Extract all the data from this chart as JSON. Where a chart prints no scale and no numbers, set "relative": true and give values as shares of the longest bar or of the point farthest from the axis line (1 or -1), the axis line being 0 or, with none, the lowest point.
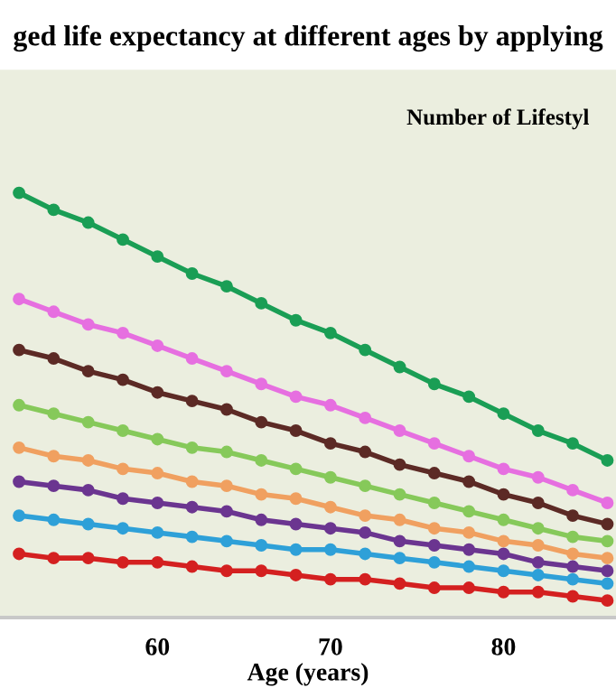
{
  "chart_data": {
    "type": "line",
    "title": "ged life expectancy at different ages by applying",
    "xlabel": "Age (years)",
    "annotations": [
      "Number of Lifestyl"
    ],
    "relative": true,
    "marker": "circle",
    "line_style": "solid",
    "grid": false,
    "legend": false,
    "x": [
      52,
      54,
      56,
      58,
      60,
      62,
      64,
      66,
      68,
      70,
      72,
      74,
      76,
      78,
      80,
      82,
      84,
      86
    ],
    "xlim": [
      50.9,
      86.5
    ],
    "xticks": [
      60,
      70,
      80
    ],
    "series": [
      {
        "color": "#1a9e55",
        "values": [
          1.0,
          0.96,
          0.93,
          0.89,
          0.85,
          0.81,
          0.78,
          0.74,
          0.7,
          0.67,
          0.63,
          0.59,
          0.55,
          0.52,
          0.48,
          0.44,
          0.41,
          0.37
        ]
      },
      {
        "color": "#e66fe0",
        "values": [
          0.75,
          0.72,
          0.69,
          0.67,
          0.64,
          0.61,
          0.58,
          0.55,
          0.52,
          0.5,
          0.47,
          0.44,
          0.41,
          0.38,
          0.35,
          0.33,
          0.3,
          0.27
        ]
      },
      {
        "color": "#5c2a25",
        "values": [
          0.63,
          0.61,
          0.58,
          0.56,
          0.53,
          0.51,
          0.49,
          0.46,
          0.44,
          0.41,
          0.39,
          0.36,
          0.34,
          0.32,
          0.29,
          0.27,
          0.24,
          0.22
        ]
      },
      {
        "color": "#86c95a",
        "values": [
          0.5,
          0.48,
          0.46,
          0.44,
          0.42,
          0.4,
          0.39,
          0.37,
          0.35,
          0.33,
          0.31,
          0.29,
          0.27,
          0.25,
          0.23,
          0.21,
          0.19,
          0.18
        ]
      },
      {
        "color": "#f0a060",
        "values": [
          0.4,
          0.38,
          0.37,
          0.35,
          0.34,
          0.32,
          0.31,
          0.29,
          0.28,
          0.26,
          0.24,
          0.23,
          0.21,
          0.2,
          0.18,
          0.17,
          0.15,
          0.14
        ]
      },
      {
        "color": "#6b3590",
        "values": [
          0.32,
          0.31,
          0.3,
          0.28,
          0.27,
          0.26,
          0.25,
          0.23,
          0.22,
          0.21,
          0.2,
          0.18,
          0.17,
          0.16,
          0.15,
          0.13,
          0.12,
          0.11
        ]
      },
      {
        "color": "#2ea0d8",
        "values": [
          0.24,
          0.23,
          0.22,
          0.21,
          0.2,
          0.19,
          0.18,
          0.17,
          0.16,
          0.16,
          0.15,
          0.14,
          0.13,
          0.12,
          0.11,
          0.1,
          0.09,
          0.08
        ]
      },
      {
        "color": "#d42020",
        "values": [
          0.15,
          0.14,
          0.14,
          0.13,
          0.13,
          0.12,
          0.11,
          0.11,
          0.1,
          0.09,
          0.09,
          0.08,
          0.07,
          0.07,
          0.06,
          0.06,
          0.05,
          0.04
        ]
      }
    ]
  }
}
